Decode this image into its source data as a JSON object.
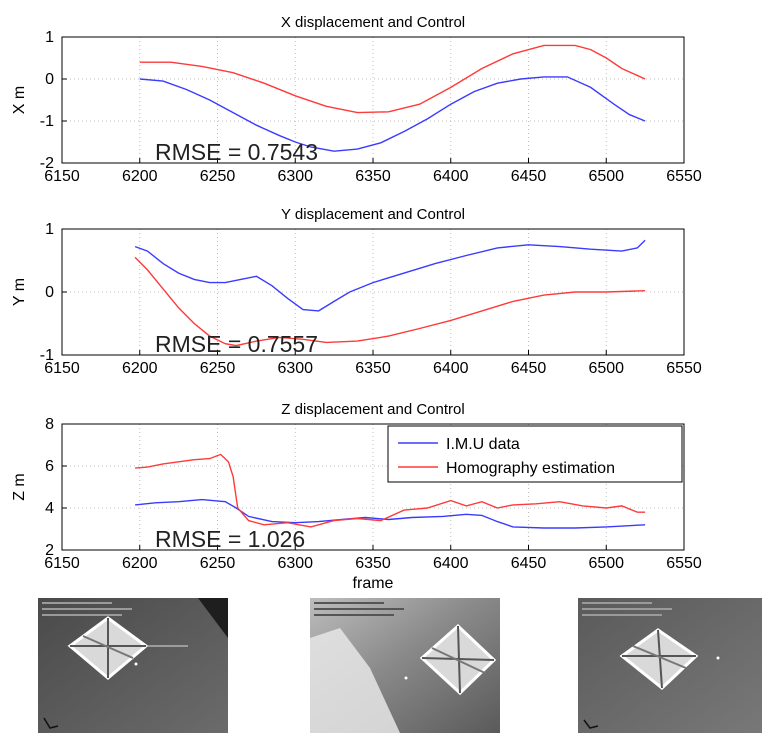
{
  "chart_data": [
    {
      "type": "line",
      "title": "X displacement and Control",
      "xlabel": "",
      "ylabel": "X m",
      "xlim": [
        6150,
        6550
      ],
      "ylim": [
        -2,
        1
      ],
      "xticks": [
        6150,
        6200,
        6250,
        6300,
        6350,
        6400,
        6450,
        6500,
        6550
      ],
      "yticks": [
        -2,
        -1,
        0,
        1
      ],
      "grid": true,
      "annotation": {
        "text": "RMSE = 0.7543"
      },
      "series": [
        {
          "color": "#3b3bff",
          "x": [
            6200,
            6215,
            6230,
            6245,
            6260,
            6275,
            6290,
            6300,
            6310,
            6325,
            6340,
            6355,
            6370,
            6385,
            6400,
            6415,
            6430,
            6445,
            6460,
            6475,
            6490,
            6505,
            6515,
            6525
          ],
          "y": [
            0.0,
            -0.05,
            -0.25,
            -0.5,
            -0.8,
            -1.1,
            -1.35,
            -1.5,
            -1.62,
            -1.72,
            -1.67,
            -1.52,
            -1.25,
            -0.95,
            -0.6,
            -0.3,
            -0.1,
            0.0,
            0.05,
            0.05,
            -0.2,
            -0.6,
            -0.85,
            -1.0
          ]
        },
        {
          "color": "#ff3a3a",
          "x": [
            6200,
            6220,
            6240,
            6260,
            6280,
            6300,
            6320,
            6340,
            6360,
            6380,
            6400,
            6420,
            6440,
            6460,
            6480,
            6490,
            6500,
            6510,
            6525
          ],
          "y": [
            0.4,
            0.4,
            0.3,
            0.15,
            -0.1,
            -0.4,
            -0.65,
            -0.8,
            -0.78,
            -0.6,
            -0.2,
            0.25,
            0.6,
            0.8,
            0.8,
            0.7,
            0.5,
            0.25,
            0.0
          ]
        }
      ]
    },
    {
      "type": "line",
      "title": "Y displacement and Control",
      "xlabel": "",
      "ylabel": "Y m",
      "xlim": [
        6150,
        6550
      ],
      "ylim": [
        -1,
        1
      ],
      "xticks": [
        6150,
        6200,
        6250,
        6300,
        6350,
        6400,
        6450,
        6500,
        6550
      ],
      "yticks": [
        -1,
        0,
        1
      ],
      "grid": true,
      "annotation": {
        "text": "RMSE = 0.7557"
      },
      "series": [
        {
          "color": "#3b3bff",
          "x": [
            6197,
            6205,
            6215,
            6225,
            6235,
            6245,
            6255,
            6265,
            6275,
            6285,
            6295,
            6305,
            6315,
            6325,
            6335,
            6350,
            6370,
            6390,
            6410,
            6430,
            6450,
            6470,
            6490,
            6510,
            6520,
            6525
          ],
          "y": [
            0.72,
            0.65,
            0.45,
            0.3,
            0.2,
            0.15,
            0.15,
            0.2,
            0.25,
            0.1,
            -0.1,
            -0.28,
            -0.3,
            -0.15,
            0.0,
            0.15,
            0.3,
            0.45,
            0.58,
            0.7,
            0.75,
            0.72,
            0.68,
            0.65,
            0.7,
            0.82
          ]
        },
        {
          "color": "#ff3a3a",
          "x": [
            6197,
            6205,
            6215,
            6225,
            6235,
            6245,
            6255,
            6262,
            6275,
            6290,
            6305,
            6320,
            6340,
            6360,
            6380,
            6400,
            6420,
            6440,
            6460,
            6480,
            6500,
            6525
          ],
          "y": [
            0.55,
            0.35,
            0.05,
            -0.25,
            -0.5,
            -0.7,
            -0.82,
            -0.85,
            -0.78,
            -0.72,
            -0.75,
            -0.8,
            -0.78,
            -0.7,
            -0.58,
            -0.45,
            -0.3,
            -0.15,
            -0.05,
            0.0,
            0.0,
            0.02
          ]
        }
      ]
    },
    {
      "type": "line",
      "title": "Z displacement and Control",
      "xlabel": "frame",
      "ylabel": "Z m",
      "xlim": [
        6150,
        6550
      ],
      "ylim": [
        2,
        8
      ],
      "xticks": [
        6150,
        6200,
        6250,
        6300,
        6350,
        6400,
        6450,
        6500,
        6550
      ],
      "yticks": [
        2,
        4,
        6,
        8
      ],
      "grid": true,
      "legend": "top-right",
      "annotation": {
        "text": "RMSE = 1.026"
      },
      "series": [
        {
          "name": "I.M.U data",
          "color": "#3b3bff",
          "x": [
            6197,
            6210,
            6225,
            6240,
            6255,
            6262,
            6270,
            6285,
            6300,
            6315,
            6330,
            6345,
            6360,
            6375,
            6395,
            6410,
            6420,
            6430,
            6440,
            6460,
            6480,
            6500,
            6525
          ],
          "y": [
            4.15,
            4.25,
            4.3,
            4.4,
            4.3,
            4.0,
            3.6,
            3.35,
            3.3,
            3.35,
            3.45,
            3.55,
            3.45,
            3.55,
            3.6,
            3.7,
            3.65,
            3.35,
            3.1,
            3.05,
            3.05,
            3.1,
            3.2
          ]
        },
        {
          "name": "Homography estimation",
          "color": "#ff3a3a",
          "x": [
            6197,
            6205,
            6215,
            6225,
            6235,
            6245,
            6252,
            6257,
            6260,
            6263,
            6270,
            6280,
            6295,
            6310,
            6325,
            6340,
            6355,
            6370,
            6385,
            6400,
            6410,
            6420,
            6430,
            6440,
            6455,
            6470,
            6485,
            6500,
            6510,
            6520,
            6525
          ],
          "y": [
            5.9,
            5.95,
            6.1,
            6.2,
            6.3,
            6.35,
            6.55,
            6.2,
            5.5,
            4.0,
            3.4,
            3.2,
            3.3,
            3.1,
            3.4,
            3.5,
            3.4,
            3.9,
            4.0,
            4.35,
            4.1,
            4.3,
            4.0,
            4.15,
            4.2,
            4.3,
            4.1,
            4.0,
            4.1,
            3.8,
            3.8
          ]
        }
      ]
    }
  ]
}
